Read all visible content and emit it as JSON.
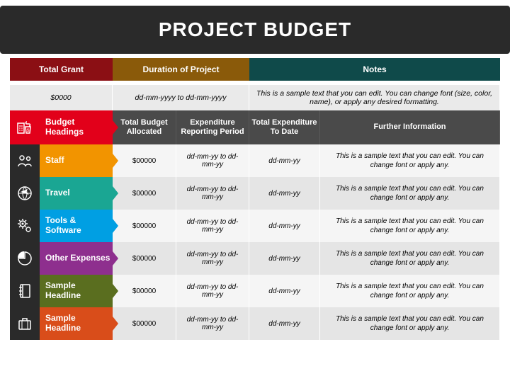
{
  "title": "PROJECT BUDGET",
  "topHeaders": [
    {
      "label": "Total Grant",
      "bg": "#8b0f14",
      "value": "$0000"
    },
    {
      "label": "Duration of Project",
      "bg": "#8a5a0a",
      "value": "dd-mm-yyyy to dd-mm-yyyy"
    },
    {
      "label": "Notes",
      "bg": "#0f4a4a",
      "value": "This is a sample text that you can edit. You can change font (size, color, name), or apply any desired formatting."
    }
  ],
  "budgetHeadingsLabel": "Budget Headings",
  "budgetHeadingsColor": "#e2001a",
  "columns": [
    "Total Budget Allocated",
    "Expenditure Reporting Period",
    "Total Expenditure To Date",
    "Further Information"
  ],
  "rows": [
    {
      "icon": "staff",
      "label": "Staff",
      "color": "#f29400",
      "allocated": "$00000",
      "period": "dd-mm-yy to dd-mm-yy",
      "todate": "dd-mm-yy",
      "info": "This is a sample text that you can edit. You can change font or apply any."
    },
    {
      "icon": "travel",
      "label": "Travel",
      "color": "#1aa693",
      "allocated": "$00000",
      "period": "dd-mm-yy to dd-mm-yy",
      "todate": "dd-mm-yy",
      "info": "This is a sample text that you can edit. You can change font or apply any."
    },
    {
      "icon": "tools",
      "label": "Tools & Software",
      "color": "#009fe3",
      "allocated": "$00000",
      "period": "dd-mm-yy to dd-mm-yy",
      "todate": "dd-mm-yy",
      "info": "This is a sample text that you can edit. You can change font or apply any."
    },
    {
      "icon": "expenses",
      "label": "Other Expenses",
      "color": "#8e2f8e",
      "allocated": "$00000",
      "period": "dd-mm-yy to dd-mm-yy",
      "todate": "dd-mm-yy",
      "info": "This is a sample text that you can edit. You can change font or apply any."
    },
    {
      "icon": "notebook",
      "label": "Sample Headline",
      "color": "#5a6e1f",
      "allocated": "$00000",
      "period": "dd-mm-yy to dd-mm-yy",
      "todate": "dd-mm-yy",
      "info": "This is a sample text that you can edit. You can change font or apply any."
    },
    {
      "icon": "briefcase",
      "label": "Sample Headline",
      "color": "#d94d1a",
      "allocated": "$00000",
      "period": "dd-mm-yy to dd-mm-yy",
      "todate": "dd-mm-yy",
      "info": "This is a sample text that you can edit. You can change font or apply any."
    }
  ],
  "iconBg": "#2a2a2a"
}
